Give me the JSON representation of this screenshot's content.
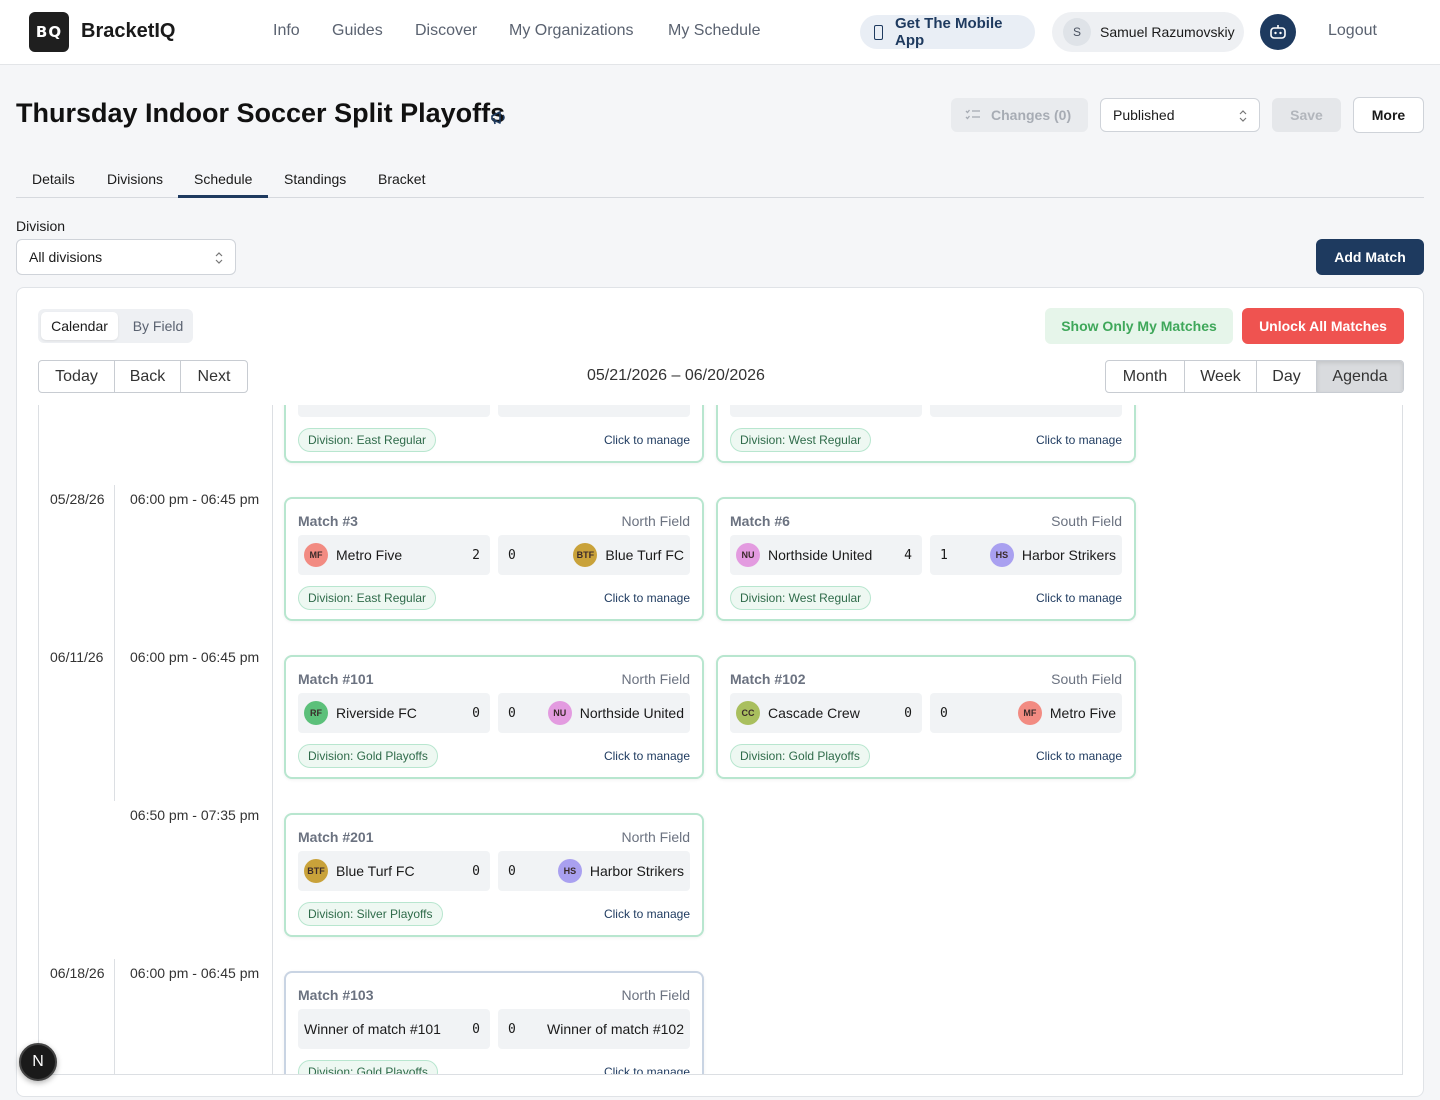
{
  "app": {
    "logo_text": "BQ",
    "brand": "BracketIQ"
  },
  "nav": {
    "links": [
      "Info",
      "Guides",
      "Discover",
      "My Organizations",
      "My Schedule"
    ],
    "mobile_app": "Get The Mobile App",
    "user_initial": "S",
    "user_name": "Samuel Razumovskiy",
    "logout": "Logout"
  },
  "header": {
    "title": "Thursday Indoor Soccer Split Playoffs",
    "changes": "Changes (0)",
    "status": "Published",
    "save": "Save",
    "more": "More"
  },
  "tabs": [
    "Details",
    "Divisions",
    "Schedule",
    "Standings",
    "Bracket"
  ],
  "active_tab": "Schedule",
  "filter": {
    "label": "Division",
    "value": "All divisions",
    "add_match": "Add Match"
  },
  "calendar": {
    "view_calendar": "Calendar",
    "view_by_field": "By Field",
    "only_mine": "Show Only My Matches",
    "unlock_all": "Unlock All Matches",
    "nav_buttons": [
      "Today",
      "Back",
      "Next"
    ],
    "range": "05/21/2026 – 06/20/2026",
    "views": [
      "Month",
      "Week",
      "Day",
      "Agenda"
    ],
    "active_view": "Agenda"
  },
  "agenda": {
    "rows": [
      {
        "date": "05/28/26",
        "time": "06:00 pm - 06:45 pm"
      },
      {
        "date": "06/11/26",
        "time": "06:00 pm - 06:45 pm"
      },
      {
        "date": "",
        "time": "06:50 pm - 07:35 pm"
      },
      {
        "date": "06/18/26",
        "time": "06:00 pm - 06:45 pm"
      }
    ],
    "manage_label": "Click to manage",
    "partial_cards": [
      {
        "division": "Division: East Regular"
      },
      {
        "division": "Division: West Regular"
      }
    ],
    "matches": [
      {
        "number": "Match #3",
        "field": "North Field",
        "home": {
          "abbr": "MF",
          "name": "Metro Five",
          "score": "2",
          "color": "#f28b82"
        },
        "away": {
          "abbr": "BTF",
          "name": "Blue Turf FC",
          "score": "0",
          "color": "#c9a23a"
        },
        "division": "Division: East Regular"
      },
      {
        "number": "Match #6",
        "field": "South Field",
        "home": {
          "abbr": "NU",
          "name": "Northside United",
          "score": "4",
          "color": "#e39be0"
        },
        "away": {
          "abbr": "HS",
          "name": "Harbor Strikers",
          "score": "1",
          "color": "#a9a0f0"
        },
        "division": "Division: West Regular"
      },
      {
        "number": "Match #101",
        "field": "North Field",
        "home": {
          "abbr": "RF",
          "name": "Riverside FC",
          "score": "0",
          "color": "#5cc07a"
        },
        "away": {
          "abbr": "NU",
          "name": "Northside United",
          "score": "0",
          "color": "#e39be0"
        },
        "division": "Division: Gold Playoffs"
      },
      {
        "number": "Match #102",
        "field": "South Field",
        "home": {
          "abbr": "CC",
          "name": "Cascade Crew",
          "score": "0",
          "color": "#a9bf5e"
        },
        "away": {
          "abbr": "MF",
          "name": "Metro Five",
          "score": "0",
          "color": "#f28b82"
        },
        "division": "Division: Gold Playoffs"
      },
      {
        "number": "Match #201",
        "field": "North Field",
        "home": {
          "abbr": "BTF",
          "name": "Blue Turf FC",
          "score": "0",
          "color": "#c9a23a"
        },
        "away": {
          "abbr": "HS",
          "name": "Harbor Strikers",
          "score": "0",
          "color": "#a9a0f0"
        },
        "division": "Division: Silver Playoffs"
      },
      {
        "number": "Match #103",
        "field": "North Field",
        "home": {
          "abbr": "",
          "name": "Winner of match #101",
          "score": "0",
          "color": ""
        },
        "away": {
          "abbr": "",
          "name": "Winner of match #102",
          "score": "0",
          "color": ""
        },
        "division": "Division: Gold Playoffs"
      }
    ]
  },
  "fab": "N"
}
